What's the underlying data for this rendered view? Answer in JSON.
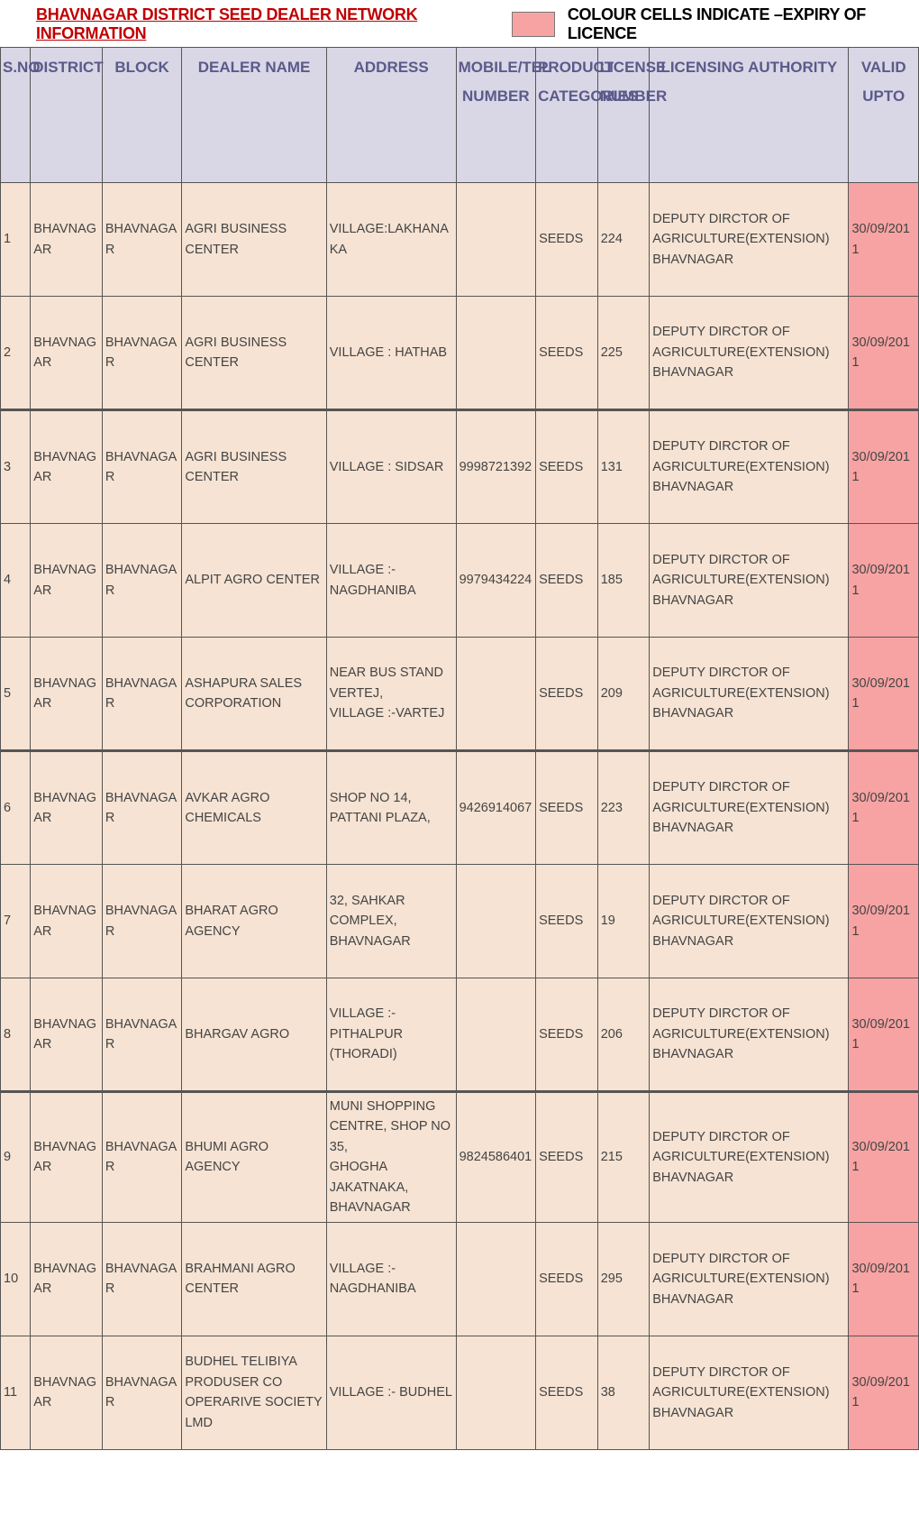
{
  "title": {
    "left": "BHAVNAGAR  DISTRICT SEED DEALER NETWORK INFORMATION",
    "right": "COLOUR CELLS INDICATE –EXPIRY OF LICENCE"
  },
  "colors": {
    "header_bg": "#d9d6e6",
    "header_text": "#5a5a8a",
    "row_bg": "#f6e3d3",
    "expired_bg": "#f7a3a3",
    "title_color": "#c00000",
    "border": "#555555"
  },
  "columns": [
    {
      "key": "sno",
      "label": "S.NO"
    },
    {
      "key": "dist",
      "label": "DISTRICT"
    },
    {
      "key": "block",
      "label": "BLOCK"
    },
    {
      "key": "dealer",
      "label": "DEALER NAME"
    },
    {
      "key": "addr",
      "label": "ADDRESS"
    },
    {
      "key": "mob",
      "label": "MOBILE/TEL NUMBER"
    },
    {
      "key": "prod",
      "label": "PRODUCT CATEGORIES"
    },
    {
      "key": "lic",
      "label": "LICENSE NUMBER"
    },
    {
      "key": "auth",
      "label": "LICENSING AUTHORITY"
    },
    {
      "key": "valid",
      "label": "VALID UPTO"
    }
  ],
  "rows": [
    {
      "sno": "1",
      "dist": "BHAVNAGAR",
      "block": "BHAVNAGAR",
      "dealer": "AGRI BUSINESS CENTER",
      "addr": "VILLAGE:LAKHANAKA",
      "mob": "",
      "prod": "SEEDS",
      "lic": "224",
      "auth": "DEPUTY DIRCTOR OF AGRICULTURE(EXTENSION) BHAVNAGAR",
      "valid": "30/09/2011",
      "expired": true
    },
    {
      "sno": "2",
      "dist": "BHAVNAGAR",
      "block": "BHAVNAGAR",
      "dealer": "AGRI BUSINESS CENTER",
      "addr": "VILLAGE : HATHAB",
      "mob": "",
      "prod": "SEEDS",
      "lic": "225",
      "auth": "DEPUTY DIRCTOR OF AGRICULTURE(EXTENSION) BHAVNAGAR",
      "valid": "30/09/2011",
      "expired": true
    },
    {
      "sno": "3",
      "dist": "BHAVNAGAR",
      "block": "BHAVNAGAR",
      "dealer": "AGRI BUSINESS CENTER",
      "addr": "VILLAGE : SIDSAR",
      "mob": "9998721392",
      "prod": "SEEDS",
      "lic": "131",
      "auth": "DEPUTY DIRCTOR OF AGRICULTURE(EXTENSION) BHAVNAGAR",
      "valid": "30/09/2011",
      "expired": true
    },
    {
      "sno": "4",
      "dist": "BHAVNAGAR",
      "block": "BHAVNAGAR",
      "dealer": "ALPIT AGRO CENTER",
      "addr": "VILLAGE :- NAGDHANIBA",
      "mob": "9979434224",
      "prod": "SEEDS",
      "lic": "185",
      "auth": "DEPUTY DIRCTOR OF AGRICULTURE(EXTENSION) BHAVNAGAR",
      "valid": "30/09/2011",
      "expired": true
    },
    {
      "sno": "5",
      "dist": "BHAVNAGAR",
      "block": "BHAVNAGAR",
      "dealer": "ASHAPURA SALES CORPORATION",
      "addr": "NEAR BUS STAND VERTEJ,\nVILLAGE :-VARTEJ",
      "mob": "",
      "prod": "SEEDS",
      "lic": "209",
      "auth": "DEPUTY DIRCTOR OF AGRICULTURE(EXTENSION) BHAVNAGAR",
      "valid": "30/09/2011",
      "expired": true
    },
    {
      "sno": "6",
      "dist": "BHAVNAGAR",
      "block": "BHAVNAGAR",
      "dealer": "AVKAR AGRO CHEMICALS",
      "addr": "SHOP NO 14,\nPATTANI PLAZA,",
      "mob": "9426914067",
      "prod": "SEEDS",
      "lic": "223",
      "auth": "DEPUTY DIRCTOR OF AGRICULTURE(EXTENSION) BHAVNAGAR",
      "valid": "30/09/2011",
      "expired": true
    },
    {
      "sno": "7",
      "dist": "BHAVNAGAR",
      "block": "BHAVNAGAR",
      "dealer": "BHARAT AGRO AGENCY",
      "addr": "32, SAHKAR COMPLEX, BHAVNAGAR",
      "mob": "",
      "prod": "SEEDS",
      "lic": "19",
      "auth": "DEPUTY DIRCTOR OF AGRICULTURE(EXTENSION) BHAVNAGAR",
      "valid": "30/09/2011",
      "expired": true
    },
    {
      "sno": "8",
      "dist": "BHAVNAGAR",
      "block": "BHAVNAGAR",
      "dealer": "BHARGAV AGRO",
      "addr": "VILLAGE :- PITHALPUR (THORADI)",
      "mob": "",
      "prod": "SEEDS",
      "lic": "206",
      "auth": "DEPUTY DIRCTOR OF AGRICULTURE(EXTENSION) BHAVNAGAR",
      "valid": "30/09/2011",
      "expired": true
    },
    {
      "sno": "9",
      "dist": "BHAVNAGAR",
      "block": "BHAVNAGAR",
      "dealer": "BHUMI AGRO AGENCY",
      "addr": "MUNI SHOPPING CENTRE, SHOP NO 35,\nGHOGHA JAKATNAKA, BHAVNAGAR",
      "mob": "9824586401",
      "prod": "SEEDS",
      "lic": "215",
      "auth": "DEPUTY DIRCTOR OF AGRICULTURE(EXTENSION) BHAVNAGAR",
      "valid": "30/09/2011",
      "expired": true
    },
    {
      "sno": "10",
      "dist": "BHAVNAGAR",
      "block": "BHAVNAGAR",
      "dealer": "BRAHMANI AGRO CENTER",
      "addr": "VILLAGE :- NAGDHANIBA",
      "mob": "",
      "prod": "SEEDS",
      "lic": "295",
      "auth": "DEPUTY DIRCTOR OF AGRICULTURE(EXTENSION) BHAVNAGAR",
      "valid": "30/09/2011",
      "expired": true
    },
    {
      "sno": "11",
      "dist": "BHAVNAGAR",
      "block": "BHAVNAGAR",
      "dealer": "BUDHEL TELIBIYA PRODUSER CO OPERARIVE SOCIETY LMD",
      "addr": "VILLAGE :- BUDHEL",
      "mob": "",
      "prod": "SEEDS",
      "lic": "38",
      "auth": "DEPUTY DIRCTOR OF AGRICULTURE(EXTENSION) BHAVNAGAR",
      "valid": "30/09/2011",
      "expired": true
    }
  ]
}
